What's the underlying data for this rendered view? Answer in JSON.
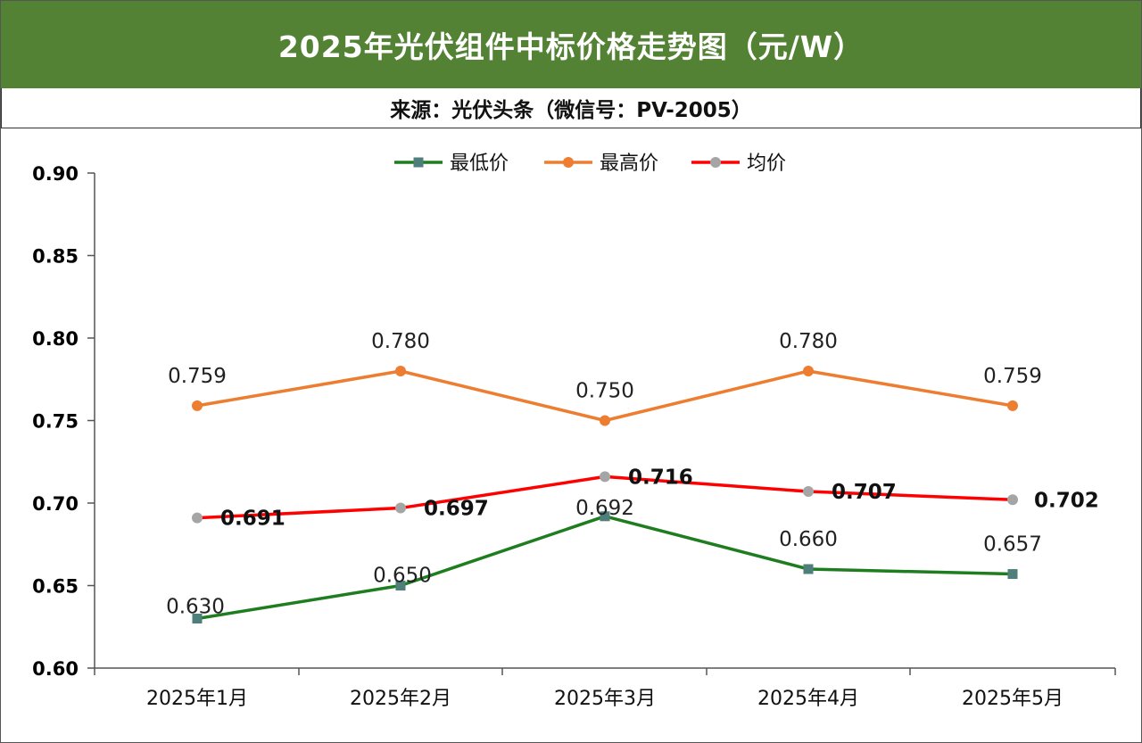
{
  "header": {
    "title": "2025年光伏组件中标价格走势图（元/W）",
    "source": "来源：光伏头条（微信号：PV-2005）"
  },
  "chart_data": {
    "type": "line",
    "title": "2025年光伏组件中标价格走势图（元/W）",
    "categories": [
      "2025年1月",
      "2025年2月",
      "2025年3月",
      "2025年4月",
      "2025年5月"
    ],
    "ylim": [
      0.6,
      0.9
    ],
    "yticks": [
      "0.90",
      "0.85",
      "0.80",
      "0.75",
      "0.70",
      "0.65",
      "0.60"
    ],
    "ytick_values": [
      0.9,
      0.85,
      0.8,
      0.75,
      0.7,
      0.65,
      0.6
    ],
    "legend_position": "top",
    "series": [
      {
        "name": "最低价",
        "values": [
          0.63,
          0.65,
          0.692,
          0.66,
          0.657
        ],
        "labels": [
          "0.630",
          "0.650",
          "0.692",
          "0.660",
          "0.657"
        ],
        "color": "#1e7d1e",
        "marker_color": "#4f7f7a",
        "marker": "square",
        "label_bold": false
      },
      {
        "name": "最高价",
        "values": [
          0.759,
          0.78,
          0.75,
          0.78,
          0.759
        ],
        "labels": [
          "0.759",
          "0.780",
          "0.750",
          "0.780",
          "0.759"
        ],
        "color": "#ed7d31",
        "marker_color": "#ed7d31",
        "marker": "circle",
        "label_bold": false
      },
      {
        "name": "均价",
        "values": [
          0.691,
          0.697,
          0.716,
          0.707,
          0.702
        ],
        "labels": [
          "0.691",
          "0.697",
          "0.716",
          "0.707",
          "0.702"
        ],
        "color": "#ff0000",
        "marker_color": "#a5a5a5",
        "marker": "circle",
        "label_bold": true
      }
    ]
  }
}
